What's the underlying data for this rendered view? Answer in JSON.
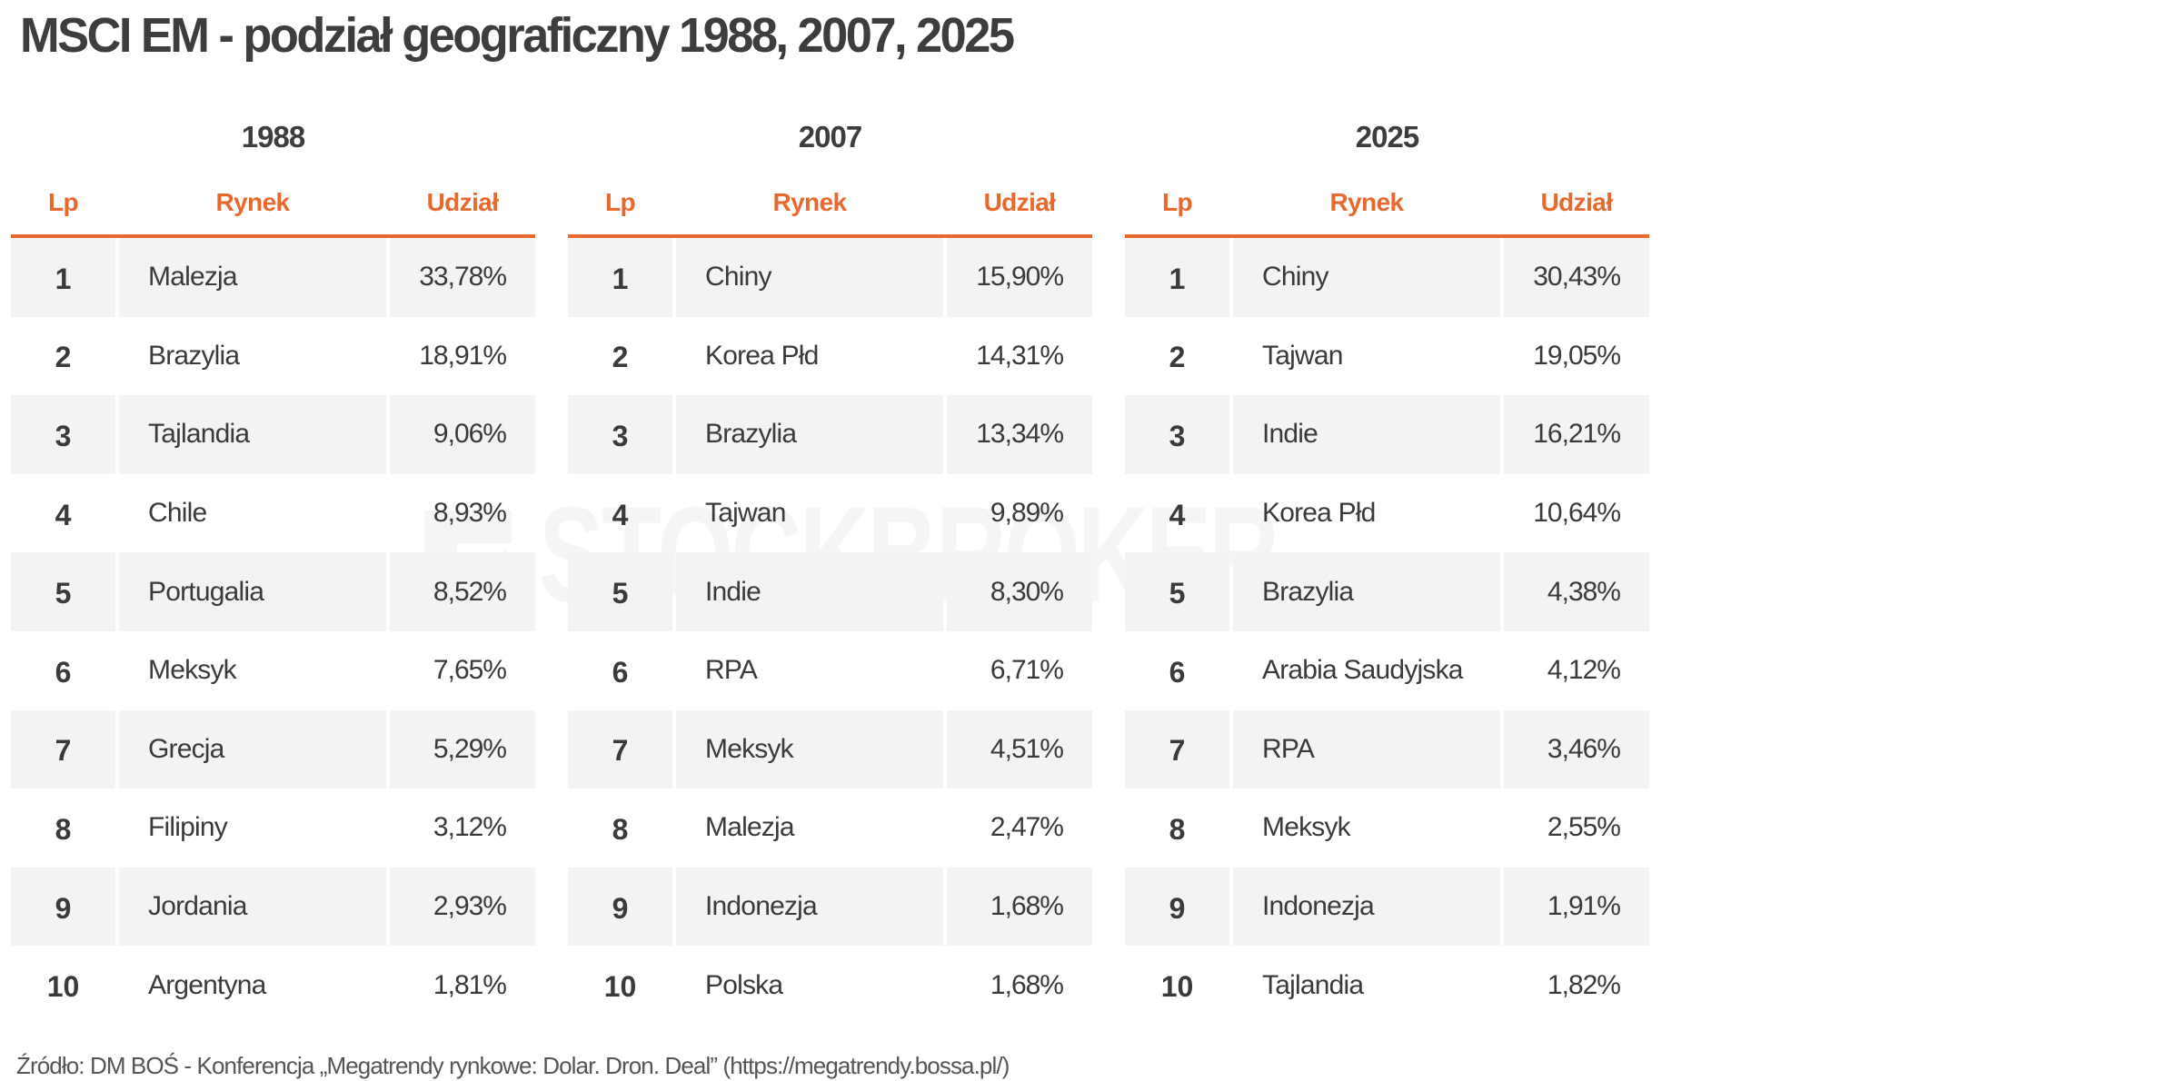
{
  "title": "MSCI EM - podział geograficzny 1988, 2007, 2025",
  "column_headers": {
    "lp": "Lp",
    "rynek": "Rynek",
    "udzial": "Udział"
  },
  "colors": {
    "accent": "#e8692e",
    "row_shade": "#f2f3f3",
    "text": "#3a3a3a"
  },
  "watermark": {
    "text": "STOCKBROKER",
    "icon": "arrow-logo-icon"
  },
  "tables": [
    {
      "year": "1988",
      "rows": [
        {
          "lp": "1",
          "rynek": "Malezja",
          "udzial": "33,78%"
        },
        {
          "lp": "2",
          "rynek": "Brazylia",
          "udzial": "18,91%"
        },
        {
          "lp": "3",
          "rynek": "Tajlandia",
          "udzial": "9,06%"
        },
        {
          "lp": "4",
          "rynek": "Chile",
          "udzial": "8,93%"
        },
        {
          "lp": "5",
          "rynek": "Portugalia",
          "udzial": "8,52%"
        },
        {
          "lp": "6",
          "rynek": "Meksyk",
          "udzial": "7,65%"
        },
        {
          "lp": "7",
          "rynek": "Grecja",
          "udzial": "5,29%"
        },
        {
          "lp": "8",
          "rynek": "Filipiny",
          "udzial": "3,12%"
        },
        {
          "lp": "9",
          "rynek": "Jordania",
          "udzial": "2,93%"
        },
        {
          "lp": "10",
          "rynek": "Argentyna",
          "udzial": "1,81%"
        }
      ]
    },
    {
      "year": "2007",
      "rows": [
        {
          "lp": "1",
          "rynek": "Chiny",
          "udzial": "15,90%"
        },
        {
          "lp": "2",
          "rynek": "Korea Płd",
          "udzial": "14,31%"
        },
        {
          "lp": "3",
          "rynek": "Brazylia",
          "udzial": "13,34%"
        },
        {
          "lp": "4",
          "rynek": "Tajwan",
          "udzial": "9,89%"
        },
        {
          "lp": "5",
          "rynek": "Indie",
          "udzial": "8,30%"
        },
        {
          "lp": "6",
          "rynek": "RPA",
          "udzial": "6,71%"
        },
        {
          "lp": "7",
          "rynek": "Meksyk",
          "udzial": "4,51%"
        },
        {
          "lp": "8",
          "rynek": "Malezja",
          "udzial": "2,47%"
        },
        {
          "lp": "9",
          "rynek": "Indonezja",
          "udzial": "1,68%"
        },
        {
          "lp": "10",
          "rynek": "Polska",
          "udzial": "1,68%"
        }
      ]
    },
    {
      "year": "2025",
      "rows": [
        {
          "lp": "1",
          "rynek": "Chiny",
          "udzial": "30,43%"
        },
        {
          "lp": "2",
          "rynek": "Tajwan",
          "udzial": "19,05%"
        },
        {
          "lp": "3",
          "rynek": "Indie",
          "udzial": "16,21%"
        },
        {
          "lp": "4",
          "rynek": "Korea Płd",
          "udzial": "10,64%"
        },
        {
          "lp": "5",
          "rynek": "Brazylia",
          "udzial": "4,38%"
        },
        {
          "lp": "6",
          "rynek": "Arabia Saudyjska",
          "udzial": "4,12%"
        },
        {
          "lp": "7",
          "rynek": "RPA",
          "udzial": "3,46%"
        },
        {
          "lp": "8",
          "rynek": "Meksyk",
          "udzial": "2,55%"
        },
        {
          "lp": "9",
          "rynek": "Indonezja",
          "udzial": "1,91%"
        },
        {
          "lp": "10",
          "rynek": "Tajlandia",
          "udzial": "1,82%"
        }
      ]
    }
  ],
  "footer": "Źródło: DM BOŚ - Konferencja „Megatrendy rynkowe: Dolar. Dron. Deal” (https://megatrendy.bossa.pl/)"
}
